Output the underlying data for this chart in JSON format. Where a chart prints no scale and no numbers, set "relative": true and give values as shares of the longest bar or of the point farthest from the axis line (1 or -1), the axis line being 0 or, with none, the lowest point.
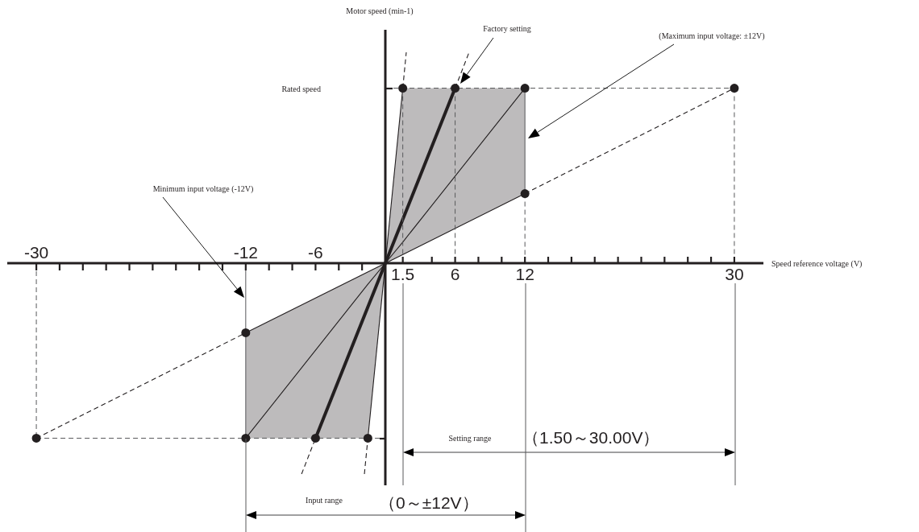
{
  "chart_data": {
    "type": "line",
    "relative": true,
    "xlabel": "Speed reference voltage (V)",
    "ylabel": "Motor speed (min-1)",
    "xlim": [
      -32.5,
      32.5
    ],
    "xticks": [
      1.5,
      {
        "value": 4,
        "label": null
      },
      6,
      {
        "value": 8,
        "label": null
      },
      {
        "value": 10,
        "label": null
      },
      12,
      {
        "value": 14,
        "label": null
      },
      {
        "value": 16,
        "label": null
      },
      {
        "value": 18,
        "label": null
      },
      {
        "value": 20,
        "label": null
      },
      {
        "value": 22,
        "label": null
      },
      {
        "value": 24,
        "label": null
      },
      {
        "value": 26,
        "label": null
      },
      {
        "value": 28,
        "label": null
      },
      30
    ],
    "x2lim": [
      -32.5,
      32.5
    ],
    "x2ticks": [
      -30,
      {
        "value": -28,
        "label": null
      },
      {
        "value": -26,
        "label": null
      },
      {
        "value": -24,
        "label": null
      },
      {
        "value": -22,
        "label": null
      },
      {
        "value": -20,
        "label": null
      },
      {
        "value": -18,
        "label": null
      },
      {
        "value": -16,
        "label": null
      },
      {
        "value": -14,
        "label": null
      },
      -12,
      {
        "value": -10,
        "label": null
      },
      {
        "value": -8,
        "label": null
      },
      -6,
      {
        "value": -4,
        "label": null
      },
      {
        "value": -2,
        "label": null
      }
    ],
    "series": [
      {
        "color": "#231f20",
        "x": [
          -12,
          -1.5,
          0,
          1.5,
          12
        ],
        "values": [
          -0.83,
          -0.1,
          0,
          0.1,
          0.83
        ],
        "lower": [
          -0.83,
          -0.83,
          0,
          0.04,
          0.33
        ],
        "upper": [
          -0.33,
          -0.04,
          0,
          0.83,
          0.83
        ]
      },
      {
        "color": "#231f20",
        "x": [
          -6,
          6
        ],
        "values": [
          -0.83,
          0.83
        ]
      },
      {
        "color": "#231f20",
        "x": [
          -1.5,
          1.5
        ],
        "values": [
          -0.83,
          0.83
        ]
      },
      {
        "color": "#231f20",
        "x": [
          -12,
          12
        ],
        "values": [
          -0.33,
          0.33
        ]
      },
      {
        "color": "#231f20",
        "line_style": "dashed",
        "x": [
          -30,
          -12
        ],
        "values": [
          -0.83,
          -0.33
        ]
      },
      {
        "color": "#231f20",
        "line_style": "dashed",
        "x": [
          12,
          30
        ],
        "values": [
          0.33,
          0.83
        ]
      },
      {
        "color": "#231f20",
        "line_style": "dashed",
        "x": [
          -7.2,
          -6
        ],
        "values": [
          -1,
          -0.83
        ]
      },
      {
        "color": "#231f20",
        "line_style": "dashed",
        "x": [
          6,
          7.2
        ],
        "values": [
          0.83,
          1
        ]
      },
      {
        "color": "#231f20",
        "line_style": "dashed",
        "x": [
          -1.8,
          -1.5
        ],
        "values": [
          -1,
          -0.83
        ]
      },
      {
        "color": "#231f20",
        "line_style": "dashed",
        "x": [
          1.5,
          1.8
        ],
        "values": [
          0.83,
          1
        ]
      },
      {
        "color": "#58595b",
        "line_style": "dashed",
        "x": [
          0,
          30
        ],
        "values": [
          0.83,
          0.83
        ]
      },
      {
        "color": "#58595b",
        "line_style": "dashed",
        "x": [
          -30,
          0
        ],
        "values": [
          -0.83,
          -0.83
        ]
      },
      {
        "color": "#58595b",
        "line_style": "dashed",
        "x": [
          30,
          30
        ],
        "values": [
          0.83,
          0
        ]
      },
      {
        "color": "#58595b",
        "line_style": "dashed",
        "x": [
          6,
          6
        ],
        "values": [
          0.83,
          0
        ]
      },
      {
        "color": "#58595b",
        "line_style": "dashed",
        "x": [
          1.5,
          1.5
        ],
        "values": [
          0.83,
          0
        ]
      },
      {
        "color": "#58595b",
        "line_style": "dashed",
        "x": [
          12,
          12
        ],
        "values": [
          0.33,
          0
        ]
      },
      {
        "color": "#58595b",
        "line_style": "dashed",
        "x": [
          -30,
          -30
        ],
        "values": [
          0,
          -0.83
        ]
      },
      {
        "color": "#58595b",
        "x": [
          12,
          12
        ],
        "values": [
          0.83,
          0.33
        ]
      },
      {
        "color": "#58595b",
        "x": [
          -12,
          -12
        ],
        "values": [
          0,
          -0.83
        ]
      },
      {
        "type": "scatter",
        "color": "#231f20",
        "marker": "circle",
        "x": [
          -30,
          -12,
          -12,
          -6,
          -1.5,
          1.5,
          6,
          12,
          12,
          30
        ],
        "values": [
          -0.83,
          -0.83,
          -0.33,
          -0.83,
          -0.83,
          0.83,
          0.83,
          0.83,
          0.33,
          0.83
        ]
      }
    ],
    "annotations": [
      "Rated speed",
      "Factory setting",
      "(Maximum input voltage: ±12V)",
      "Minimum input voltage (-12V)",
      "Setting range",
      "（1.50～30.00V）",
      "Input range",
      "（0～±12V）"
    ]
  }
}
